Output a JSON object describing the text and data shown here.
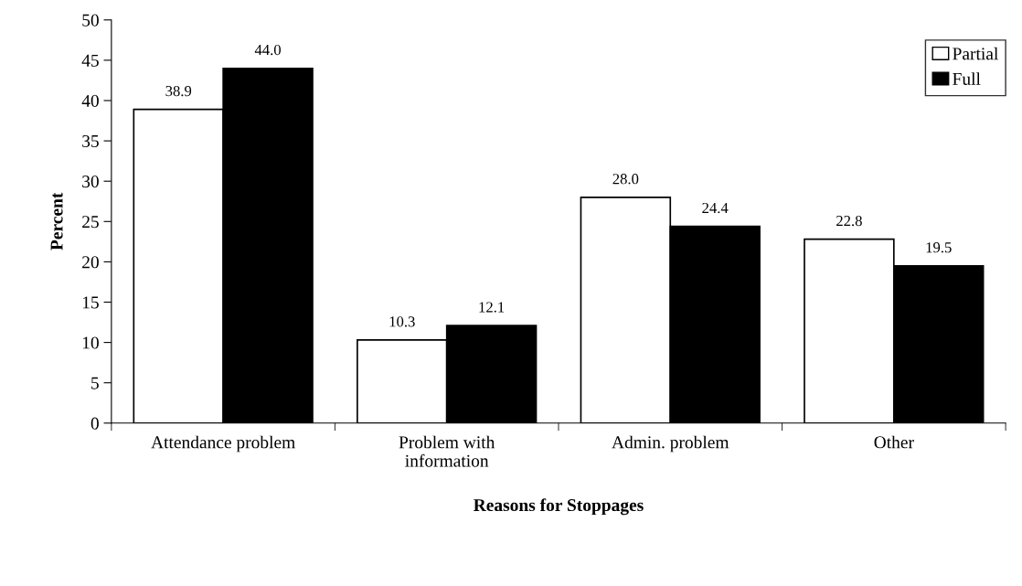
{
  "chart_data": {
    "type": "bar",
    "xlabel": "Reasons for Stoppages",
    "ylabel": "Percent",
    "categories": [
      "Attendance problem",
      "Problem with\ninformation",
      "Admin. problem",
      "Other"
    ],
    "series": [
      {
        "name": "Partial",
        "color": "#ffffff",
        "values": [
          38.9,
          10.3,
          28.0,
          22.8
        ],
        "value_labels": [
          "38.9",
          "10.3",
          "28.0",
          "22.8"
        ]
      },
      {
        "name": "Full",
        "color": "#000000",
        "values": [
          44.0,
          12.1,
          24.4,
          19.5
        ],
        "value_labels": [
          "44.0",
          "12.1",
          "24.4",
          "19.5"
        ]
      }
    ],
    "ylim": [
      0,
      50
    ],
    "yticks": [
      0,
      5,
      10,
      15,
      20,
      25,
      30,
      35,
      40,
      45,
      50
    ],
    "grid": false,
    "legend": "top right"
  }
}
